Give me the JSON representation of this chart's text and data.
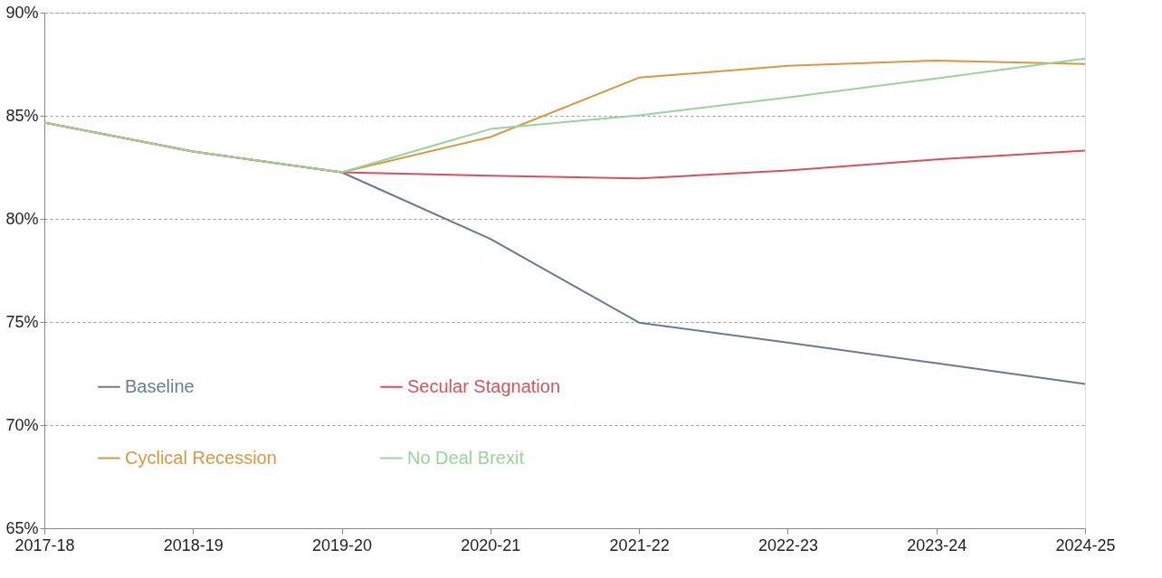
{
  "chart_data": {
    "type": "line",
    "categories": [
      "2017-18",
      "2018-19",
      "2019-20",
      "2020-21",
      "2021-22",
      "2022-23",
      "2023-24",
      "2024-25"
    ],
    "series": [
      {
        "name": "Baseline",
        "color": "#687a99",
        "values": [
          84.67,
          83.27,
          82.26,
          79.03,
          74.97,
          74.0,
          73.0,
          72.0
        ]
      },
      {
        "name": "Secular Stagnation",
        "color": "#d9505a",
        "values": [
          84.67,
          83.27,
          82.26,
          82.09,
          81.96,
          82.35,
          82.88,
          83.31
        ]
      },
      {
        "name": "Cyclical Recession",
        "color": "#d9973f",
        "values": [
          84.67,
          83.27,
          82.26,
          83.97,
          86.85,
          87.42,
          87.68,
          87.51
        ]
      },
      {
        "name": "No Deal Brexit",
        "color": "#98d49a",
        "values": [
          84.67,
          83.27,
          82.26,
          84.36,
          85.02,
          85.89,
          86.81,
          87.77
        ]
      }
    ],
    "ylim": [
      65,
      90
    ],
    "yticks": [
      {
        "value": 65,
        "label": "65%"
      },
      {
        "value": 70,
        "label": "70%"
      },
      {
        "value": 75,
        "label": "75%"
      },
      {
        "value": 80,
        "label": "80%"
      },
      {
        "value": 85,
        "label": "85%"
      },
      {
        "value": 90,
        "label": "90%"
      }
    ],
    "grid": "y",
    "legend": "bottom left",
    "marker": "none",
    "line_style": "solid"
  }
}
